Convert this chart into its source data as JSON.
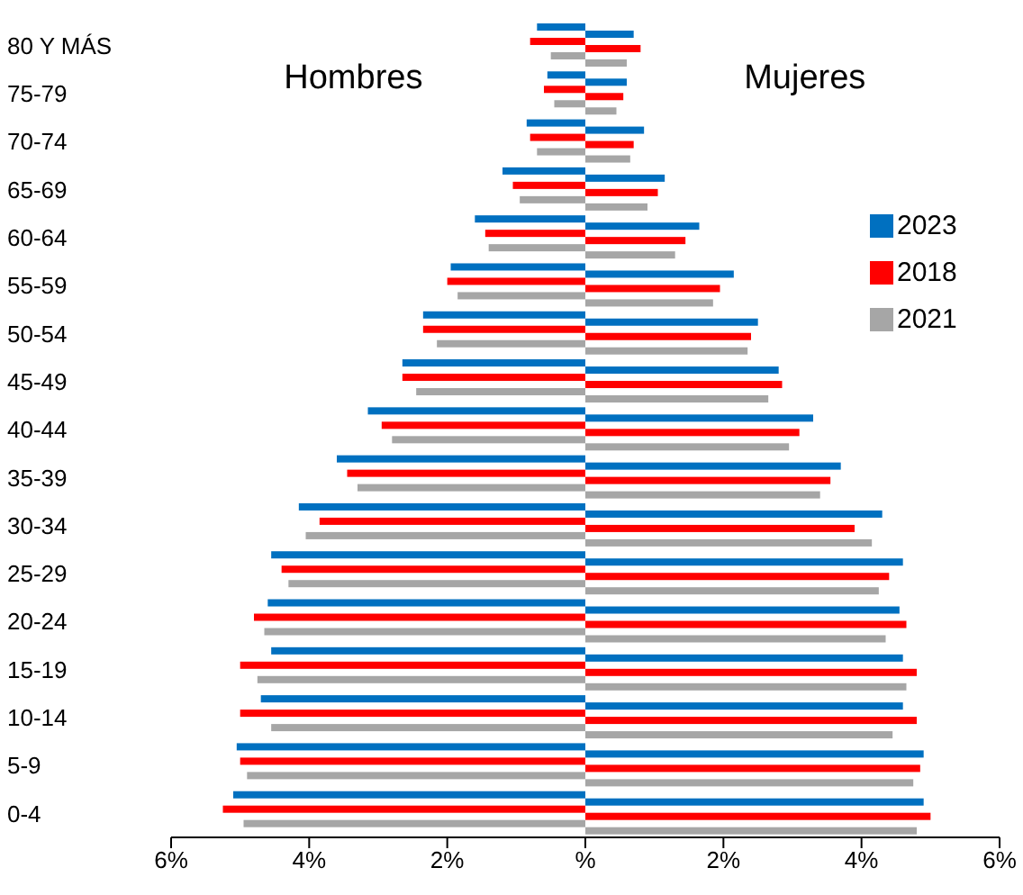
{
  "chart_data": {
    "type": "bar",
    "orientation": "horizontal",
    "categories": [
      "80 Y MÁS",
      "75-79",
      "70-74",
      "65-69",
      "60-64",
      "55-59",
      "50-54",
      "45-49",
      "40-44",
      "35-39",
      "30-34",
      "25-29",
      "20-24",
      "15-19",
      "10-14",
      "5-9",
      "0-4"
    ],
    "series": [
      {
        "color": "#0070c0",
        "values": [
          -0.7,
          -0.55,
          -0.85,
          -1.2,
          -1.6,
          -1.95,
          -2.35,
          -2.65,
          -3.15,
          -3.6,
          -4.15,
          -4.55,
          -4.6,
          -4.55,
          -4.7,
          -5.05,
          -5.1
        ]
      },
      {
        "name": "2023",
        "color": "#0070c0",
        "values": [
          0.7,
          0.6,
          0.85,
          1.15,
          1.65,
          2.15,
          2.5,
          2.8,
          3.3,
          3.7,
          4.3,
          4.6,
          4.55,
          4.6,
          4.6,
          4.9,
          4.9
        ]
      },
      {
        "color": "#ff0000",
        "values": [
          -0.8,
          -0.6,
          -0.8,
          -1.05,
          -1.45,
          -2.0,
          -2.35,
          -2.65,
          -2.95,
          -3.45,
          -3.85,
          -4.4,
          -4.8,
          -5.0,
          -5.0,
          -5.0,
          -5.25
        ]
      },
      {
        "name": "2018",
        "color": "#ff0000",
        "values": [
          0.8,
          0.55,
          0.7,
          1.05,
          1.45,
          1.95,
          2.4,
          2.85,
          3.1,
          3.55,
          3.9,
          4.4,
          4.65,
          4.8,
          4.8,
          4.85,
          5.0
        ]
      },
      {
        "color": "#a6a6a6",
        "values": [
          -0.5,
          -0.45,
          -0.7,
          -0.95,
          -1.4,
          -1.85,
          -2.15,
          -2.45,
          -2.8,
          -3.3,
          -4.05,
          -4.3,
          -4.65,
          -4.75,
          -4.55,
          -4.9,
          -4.95
        ]
      },
      {
        "name": "2021",
        "color": "#a6a6a6",
        "values": [
          0.6,
          0.45,
          0.65,
          0.9,
          1.3,
          1.85,
          2.35,
          2.65,
          2.95,
          3.4,
          4.15,
          4.25,
          4.35,
          4.65,
          4.45,
          4.75,
          4.8
        ]
      }
    ],
    "xlim": [
      -6,
      6
    ],
    "xticks": [
      {
        "value": -6,
        "label": "6%"
      },
      {
        "value": -4,
        "label": "4%"
      },
      {
        "value": -2,
        "label": "2%"
      },
      {
        "value": 0,
        "label": "%"
      },
      {
        "value": 2,
        "label": "2%"
      },
      {
        "value": 4,
        "label": "4%"
      },
      {
        "value": 6,
        "label": "6%"
      }
    ],
    "annotations": [
      "Hombres",
      "Mujeres"
    ],
    "legend": "right",
    "grid": false
  }
}
